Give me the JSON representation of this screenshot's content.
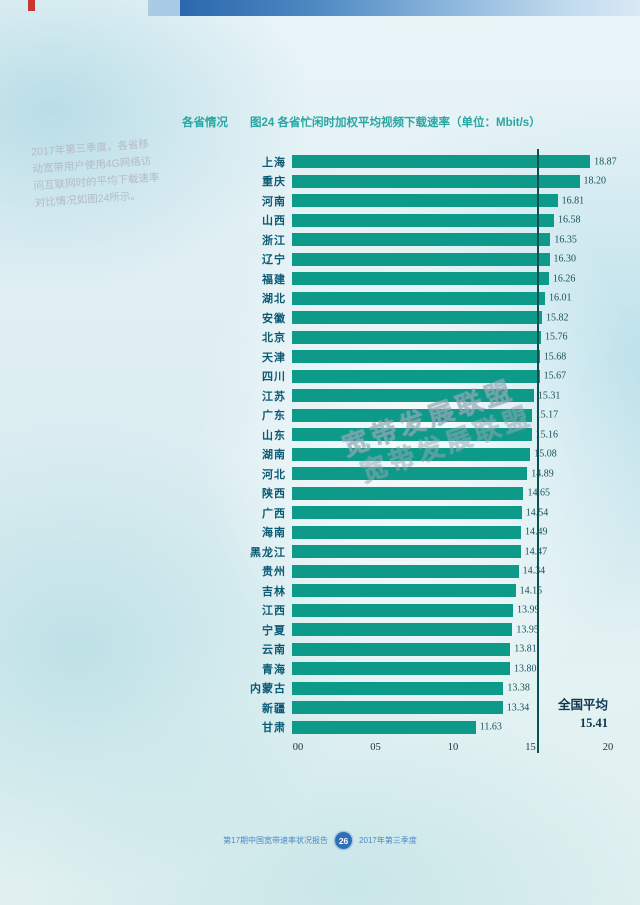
{
  "page": {
    "section_label": "各省情况",
    "side_note": "2017年第三季度，各省移动宽带用户使用4G网络访问互联网时的平均下载速率对比情况如图24所示。",
    "watermark": "宽带发展联盟",
    "footer": {
      "left": "第17期中国宽带速率状况报告",
      "badge": "26",
      "right": "2017年第三季度"
    }
  },
  "chart_data": {
    "type": "bar",
    "orientation": "horizontal",
    "title": "图24 各省忙闲时加权平均视频下载速率（单位：Mbit/s）",
    "unit": "Mbit/s",
    "categories": [
      "上海",
      "重庆",
      "河南",
      "山西",
      "浙江",
      "辽宁",
      "福建",
      "湖北",
      "安徽",
      "北京",
      "天津",
      "四川",
      "江苏",
      "广东",
      "山东",
      "湖南",
      "河北",
      "陕西",
      "广西",
      "海南",
      "黑龙江",
      "贵州",
      "吉林",
      "江西",
      "宁夏",
      "云南",
      "青海",
      "内蒙古",
      "新疆",
      "甘肃"
    ],
    "values": [
      18.87,
      18.2,
      16.81,
      16.58,
      16.35,
      16.3,
      16.26,
      16.01,
      15.82,
      15.76,
      15.68,
      15.67,
      15.31,
      15.17,
      15.16,
      15.08,
      14.89,
      14.65,
      14.54,
      14.49,
      14.47,
      14.34,
      14.15,
      13.99,
      13.95,
      13.81,
      13.8,
      13.38,
      13.34,
      11.63
    ],
    "xlim": [
      0,
      20
    ],
    "x_ticks": [
      "00",
      "05",
      "10",
      "15",
      "20"
    ],
    "grid": false,
    "legend": "none",
    "bar_color": "#0e9a88",
    "average": {
      "label": "全国平均",
      "value": 15.41
    }
  }
}
